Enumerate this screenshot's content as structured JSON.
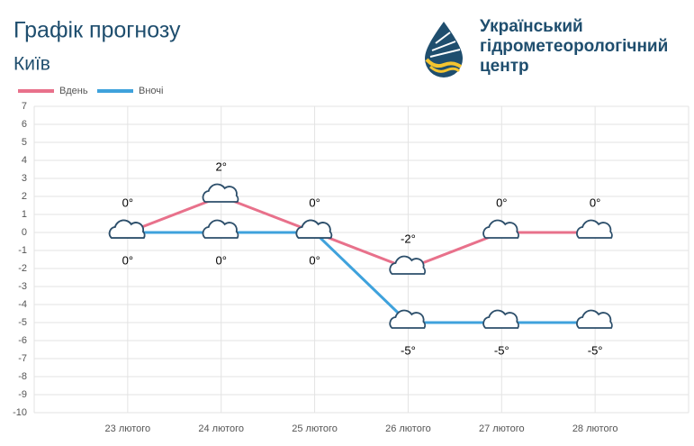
{
  "header": {
    "title": "Графік прогнозу",
    "city": "Київ",
    "org_lines": [
      "Український",
      "гідрометеорологічний",
      "центр"
    ]
  },
  "chart_data": {
    "type": "line",
    "categories": [
      "23 лютого",
      "24 лютого",
      "25 лютого",
      "26 лютого",
      "27 лютого",
      "28 лютого"
    ],
    "series": [
      {
        "name": "Вдень",
        "color": "#e8718b",
        "values": [
          0,
          2,
          0,
          -2,
          0,
          0
        ],
        "value_labels": [
          "0°",
          "2°",
          "0°",
          "-2°",
          "0°",
          "0°"
        ]
      },
      {
        "name": "Вночі",
        "color": "#3fa2dc",
        "values": [
          0,
          0,
          0,
          -5,
          -5,
          -5
        ],
        "value_labels": [
          "0°",
          "0°",
          "0°",
          "-5°",
          "-5°",
          "-5°"
        ]
      }
    ],
    "ylim": [
      -10,
      7
    ],
    "yticks": [
      7,
      6,
      5,
      4,
      3,
      2,
      1,
      0,
      -1,
      -2,
      -3,
      -4,
      -5,
      -6,
      -7,
      -8,
      -9,
      -10
    ],
    "grid": true
  }
}
